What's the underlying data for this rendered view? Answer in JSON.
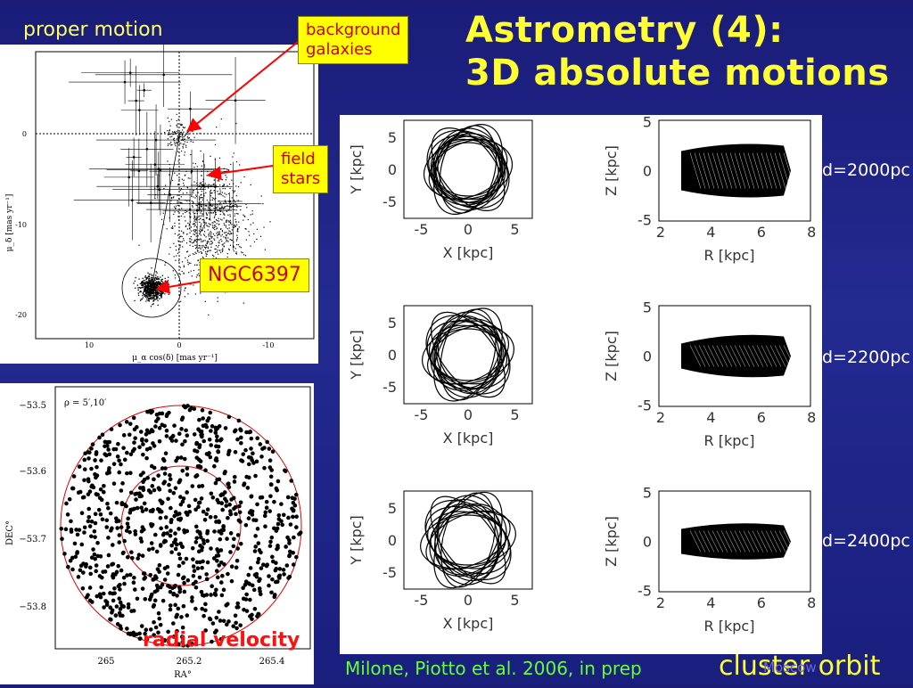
{
  "title_line1": "Astrometry (4):",
  "title_line2": "3D absolute motions",
  "proper_motion_label": "proper motion",
  "callouts": {
    "background_galaxies_1": "background",
    "background_galaxies_2": "galaxies",
    "field_stars_1": "field",
    "field_stars_2": "stars",
    "cluster_name": "NGC6397"
  },
  "radial_velocity_label": "radial velocity",
  "pm_plot": {
    "ylabel": "μ_δ [mas yr⁻¹]",
    "xlabel": "μ_α cos(δ) [mas yr⁻¹]",
    "yticks": [
      "0",
      "-10",
      "-20"
    ],
    "xticks": [
      "10",
      "0",
      "-10"
    ]
  },
  "rv_plot": {
    "annotation": "ρ = 5′,10′",
    "ylabel": "DEC°",
    "xlabel": "RA°",
    "yticks": [
      "−53.5",
      "−53.6",
      "−53.7",
      "−53.8"
    ],
    "xticks": [
      "265",
      "265.2",
      "265.4"
    ]
  },
  "orbit_panels": {
    "xy_ylabel": "Y [kpc]",
    "xy_xlabel": "X [kpc]",
    "rz_ylabel": "Z [kpc]",
    "rz_xlabel": "R [kpc]",
    "xy_xticks": [
      "-5",
      "0",
      "5"
    ],
    "xy_yticks": [
      "5",
      "0",
      "-5"
    ],
    "rz_xticks": [
      "2",
      "4",
      "6",
      "8"
    ],
    "rz_yticks": [
      "5",
      "0",
      "-5"
    ]
  },
  "distance_labels": [
    "d=2000pc",
    "d=2200pc",
    "d=2400pc"
  ],
  "citation": "Milone, Piotto  et al. 2006, in prep",
  "cluster_orbit_label": "cluster orbit",
  "footer_watermark": "Moscow",
  "colors": {
    "title": "#ffff33",
    "callout_bg": "#ffff00",
    "callout_text": "#cc0000",
    "citation": "#66ff33",
    "radial_velocity": "#ff1010"
  }
}
